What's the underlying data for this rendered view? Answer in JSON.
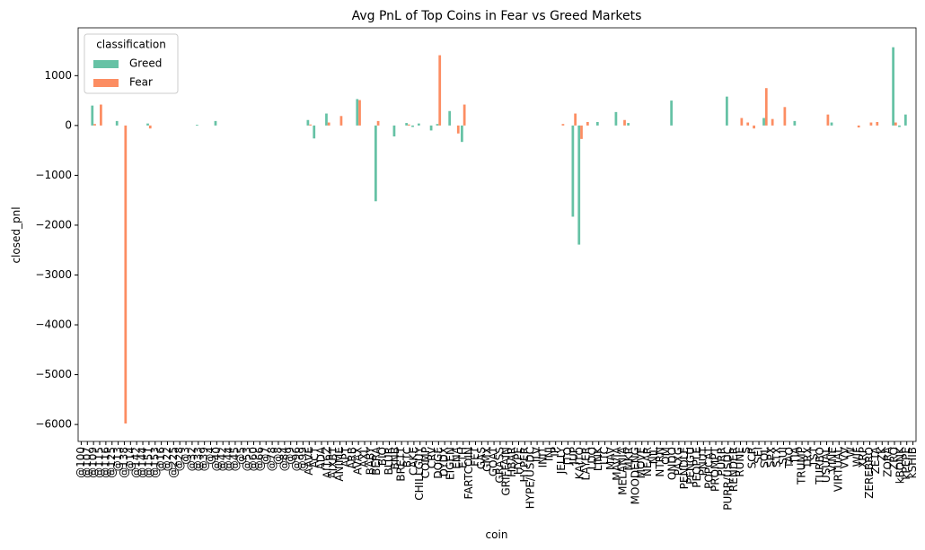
{
  "chart_data": {
    "type": "bar",
    "title": "Avg PnL of Top Coins in Fear vs Greed Markets",
    "xlabel": "coin",
    "ylabel": "closed_pnl",
    "legend_title": "classification",
    "legend": "upper left",
    "categories": [
      "@100",
      "@107",
      "@109",
      "@115",
      "@116",
      "@125",
      "@13",
      "@138",
      "@14",
      "@142",
      "@144",
      "@151",
      "@153",
      "@16",
      "@22",
      "@225",
      "@28",
      "@3",
      "@32",
      "@33",
      "@39",
      "@4",
      "@40",
      "@42",
      "@44",
      "@45",
      "@5",
      "@53",
      "@60",
      "@66",
      "@7",
      "@78",
      "@8",
      "@84",
      "@9",
      "@96",
      "@99",
      "AAVE",
      "ACT",
      "ADA",
      "AI16Z",
      "AIXBT",
      "ANIME",
      "APT",
      "ARB",
      "AVAX",
      "AXL",
      "BABY",
      "BERA",
      "BIO",
      "BLUR",
      "BNB",
      "BRETT",
      "BTC",
      "CAKE",
      "CHILLGUY",
      "COMP",
      "CRV",
      "DOGE",
      "DYDX",
      "EIGEN",
      "ENA",
      "ETH",
      "FARTCOIN",
      "FET",
      "GAS",
      "GMX",
      "GOAT",
      "GRASS",
      "GRIFFAIN",
      "HBAR",
      "HYPE",
      "HYPER",
      "HYPE/USDC",
      "ILV",
      "INIT",
      "INJ",
      "IP",
      "JELLY",
      "JTO",
      "JUP",
      "KAITO",
      "LAYER",
      "LDO",
      "LINK",
      "LTC",
      "MAV",
      "MAVIA",
      "MELANIA",
      "MKR",
      "MOODENG",
      "MOVE",
      "NEAR",
      "NIL",
      "NTRN",
      "OM",
      "ONDO",
      "PAXG",
      "PENDLE",
      "PENGU",
      "PEOPLE",
      "PNUT",
      "POPCAT",
      "PROMPT",
      "PURR",
      "PURR/USDC",
      "RENDER",
      "RUNE",
      "S",
      "SCR",
      "SEI",
      "SOL",
      "SPX",
      "STX",
      "SUI",
      "TAO",
      "TIA",
      "TRUMP",
      "TRX",
      "TST",
      "TURBO",
      "USUAL",
      "VINE",
      "VIRTUAL",
      "VVV",
      "W",
      "WIF",
      "XRP",
      "ZEREBRO",
      "ZETA",
      "ZK",
      "ZORA",
      "ZRO",
      "kBONK",
      "kPEPE",
      "kSHIB"
    ],
    "series": [
      {
        "name": "Greed",
        "color": "#66c2a5",
        "values": [
          null,
          null,
          400,
          null,
          null,
          null,
          90,
          null,
          null,
          null,
          null,
          40,
          null,
          null,
          null,
          null,
          null,
          null,
          null,
          15,
          null,
          null,
          90,
          null,
          null,
          null,
          null,
          null,
          null,
          null,
          null,
          null,
          null,
          null,
          null,
          null,
          null,
          110,
          -260,
          null,
          240,
          null,
          null,
          null,
          null,
          530,
          null,
          null,
          -1520,
          null,
          null,
          -220,
          null,
          50,
          -30,
          40,
          null,
          -100,
          30,
          null,
          290,
          null,
          -330,
          null,
          null,
          null,
          null,
          null,
          null,
          null,
          null,
          null,
          null,
          null,
          null,
          null,
          null,
          null,
          null,
          null,
          -1830,
          -2390,
          null,
          null,
          70,
          null,
          null,
          270,
          null,
          50,
          null,
          null,
          null,
          null,
          null,
          null,
          500,
          null,
          null,
          null,
          null,
          null,
          null,
          null,
          null,
          580,
          null,
          null,
          null,
          null,
          null,
          150,
          null,
          null,
          null,
          null,
          90,
          null,
          null,
          null,
          null,
          null,
          60,
          null,
          null,
          null,
          null,
          null,
          null,
          null,
          null,
          null,
          1570,
          -30,
          220,
          null
        ]
      },
      {
        "name": "Fear",
        "color": "#fc8d62",
        "values": [
          null,
          null,
          30,
          420,
          null,
          null,
          null,
          -5980,
          null,
          null,
          null,
          -60,
          null,
          null,
          null,
          null,
          null,
          null,
          null,
          null,
          null,
          null,
          null,
          null,
          null,
          null,
          null,
          null,
          null,
          null,
          null,
          null,
          null,
          null,
          null,
          null,
          null,
          20,
          null,
          null,
          60,
          null,
          190,
          null,
          null,
          510,
          null,
          null,
          90,
          null,
          null,
          null,
          null,
          20,
          null,
          null,
          null,
          null,
          1410,
          null,
          null,
          -160,
          420,
          null,
          null,
          null,
          null,
          null,
          null,
          null,
          null,
          null,
          null,
          null,
          null,
          null,
          null,
          null,
          30,
          null,
          240,
          -270,
          70,
          null,
          null,
          null,
          null,
          null,
          110,
          null,
          null,
          null,
          null,
          null,
          null,
          null,
          null,
          null,
          null,
          null,
          null,
          null,
          null,
          null,
          null,
          null,
          null,
          150,
          60,
          -60,
          null,
          750,
          130,
          null,
          370,
          null,
          null,
          null,
          null,
          null,
          null,
          220,
          null,
          null,
          null,
          null,
          -40,
          null,
          60,
          70,
          null,
          null,
          60,
          null,
          null,
          null
        ]
      }
    ],
    "ylim": [
      -6340,
      1960
    ],
    "yticks": [
      {
        "value": -6000,
        "label": "−6000"
      },
      {
        "value": -5000,
        "label": "−5000"
      },
      {
        "value": -4000,
        "label": "−4000"
      },
      {
        "value": -3000,
        "label": "−3000"
      },
      {
        "value": -2000,
        "label": "−2000"
      },
      {
        "value": -1000,
        "label": "−1000"
      },
      0,
      1000
    ]
  }
}
